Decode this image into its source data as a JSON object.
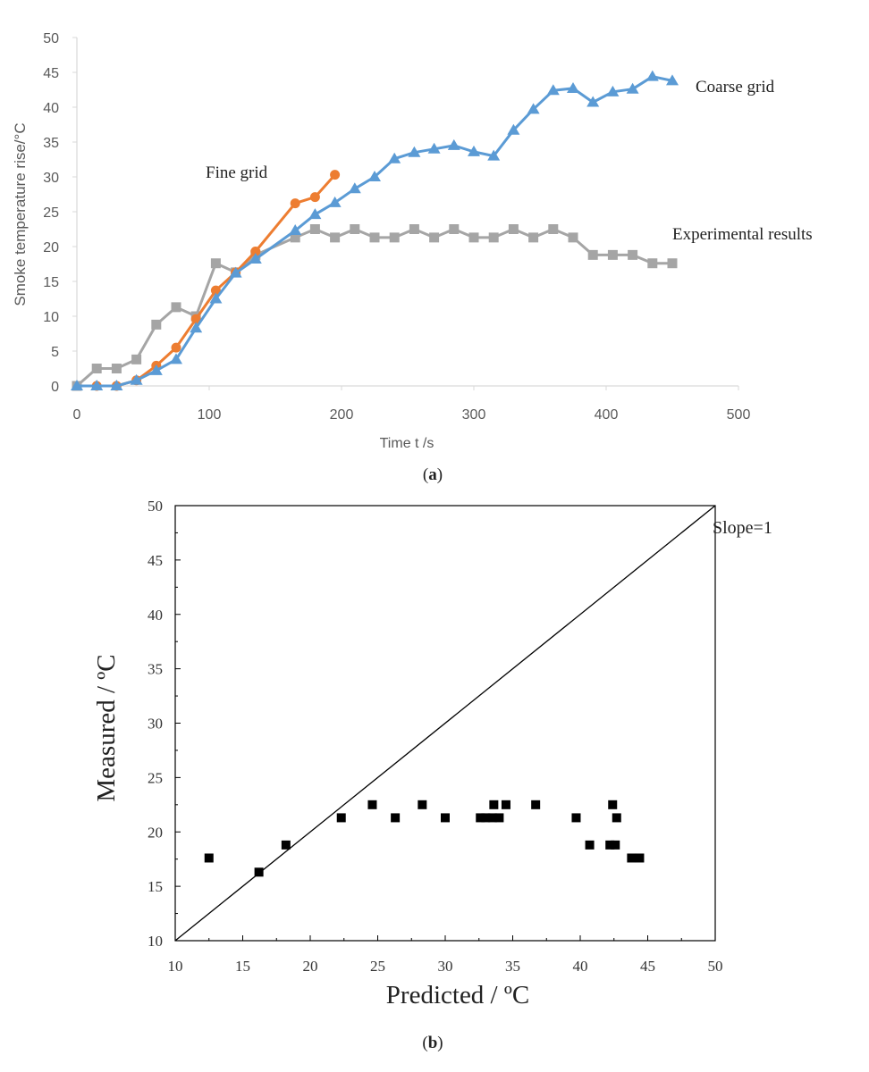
{
  "chart_data": [
    {
      "type": "line",
      "xlabel": "Time t /s",
      "ylabel": "Smoke temperature rise/°C",
      "xlim": [
        0,
        500
      ],
      "ylim": [
        0,
        50
      ],
      "xticks": [
        "0",
        "100",
        "200",
        "300",
        "400",
        "500"
      ],
      "yticks": [
        "0",
        "5",
        "10",
        "15",
        "20",
        "25",
        "30",
        "35",
        "40",
        "45",
        "50"
      ],
      "caption_pre": "(",
      "caption_letter": "a",
      "caption_post": ")",
      "series": [
        {
          "name": "Coarse grid",
          "color": "#5b9bd5",
          "marker": "triangle",
          "x": [
            0,
            15,
            30,
            45,
            60,
            75,
            90,
            105,
            120,
            135,
            165,
            180,
            195,
            210,
            225,
            240,
            255,
            270,
            285,
            300,
            315,
            330,
            345,
            360,
            375,
            390,
            405,
            420,
            435,
            450
          ],
          "y": [
            0,
            0,
            0,
            0.8,
            2.2,
            3.8,
            8.3,
            12.5,
            16.2,
            18.2,
            22.3,
            24.6,
            26.3,
            28.3,
            30.0,
            32.6,
            33.5,
            34.0,
            34.5,
            33.6,
            33.0,
            36.7,
            39.7,
            42.4,
            42.7,
            40.7,
            42.2,
            42.6,
            44.4,
            43.8
          ]
        },
        {
          "name": "Fine grid",
          "color": "#ed7d31",
          "marker": "circle",
          "x": [
            15,
            30,
            45,
            60,
            75,
            90,
            105,
            120,
            135,
            165,
            180,
            195
          ],
          "y": [
            0,
            0,
            0.8,
            2.9,
            5.5,
            9.6,
            13.7,
            16.3,
            19.3,
            26.2,
            27.1,
            30.3
          ]
        },
        {
          "name": "Experimental results",
          "color": "#a5a5a5",
          "marker": "square",
          "x": [
            0,
            15,
            30,
            45,
            60,
            75,
            90,
            105,
            120,
            135,
            165,
            180,
            195,
            210,
            225,
            240,
            255,
            270,
            285,
            300,
            315,
            330,
            345,
            360,
            375,
            390,
            405,
            420,
            435,
            450
          ],
          "y": [
            0,
            2.5,
            2.5,
            3.8,
            8.8,
            11.3,
            10.0,
            17.6,
            16.3,
            18.8,
            21.3,
            22.5,
            21.3,
            22.5,
            21.3,
            21.3,
            22.5,
            21.3,
            22.5,
            21.3,
            21.3,
            22.5,
            21.3,
            22.5,
            21.3,
            18.8,
            18.8,
            18.8,
            17.6,
            17.6
          ]
        }
      ]
    },
    {
      "type": "scatter",
      "xlabel": "Predicted / ºC",
      "ylabel": "Measured / ºC",
      "xlim": [
        10,
        50
      ],
      "ylim": [
        10,
        50
      ],
      "xticks": [
        "10",
        "15",
        "20",
        "25",
        "30",
        "35",
        "40",
        "45",
        "50"
      ],
      "yticks": [
        "10",
        "15",
        "20",
        "25",
        "30",
        "35",
        "40",
        "45",
        "50"
      ],
      "reference_line": {
        "label": "Slope=1",
        "from": [
          10,
          10
        ],
        "to": [
          50,
          50
        ]
      },
      "caption_pre": "(",
      "caption_letter": "b",
      "caption_post": ")",
      "points": {
        "x": [
          12.5,
          16.2,
          18.2,
          22.3,
          24.6,
          26.3,
          28.3,
          30.0,
          32.6,
          33.0,
          33.5,
          33.6,
          34.0,
          34.5,
          36.7,
          39.7,
          40.7,
          42.2,
          42.4,
          42.6,
          42.7,
          43.8,
          44.4
        ],
        "y": [
          17.6,
          16.3,
          18.8,
          21.3,
          22.5,
          21.3,
          22.5,
          21.3,
          21.3,
          21.3,
          21.3,
          22.5,
          21.3,
          22.5,
          22.5,
          21.3,
          18.8,
          18.8,
          22.5,
          18.8,
          21.3,
          17.6,
          17.6
        ]
      }
    }
  ]
}
